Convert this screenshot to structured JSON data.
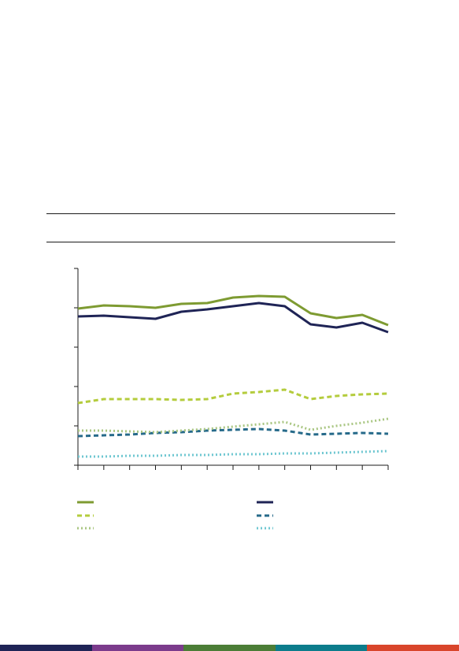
{
  "chart_data": {
    "type": "line",
    "title": "",
    "xlabel": "",
    "ylabel": "",
    "x": [
      1,
      2,
      3,
      4,
      5,
      6,
      7,
      8,
      9,
      10,
      11,
      12,
      13
    ],
    "ylim": [
      0,
      250
    ],
    "yticks": [
      0,
      50,
      100,
      150,
      200,
      250
    ],
    "grid": false,
    "legend_placement": "bottom",
    "series": [
      {
        "color": "#7e9b32",
        "style": "solid",
        "values": [
          199,
          203,
          202,
          200,
          205,
          206,
          213,
          215,
          214,
          193,
          187,
          191,
          178
        ]
      },
      {
        "color": "#1f2456",
        "style": "solid",
        "values": [
          189,
          190,
          188,
          186,
          195,
          198,
          202,
          206,
          202,
          179,
          175,
          181,
          169
        ]
      },
      {
        "color": "#b4cc3d",
        "style": "dashed",
        "values": [
          79,
          84,
          84,
          84,
          83,
          84,
          91,
          93,
          96,
          84,
          88,
          90,
          91
        ]
      },
      {
        "color": "#266a8a",
        "style": "dashed",
        "values": [
          37,
          38,
          39,
          41,
          42,
          44,
          45,
          46,
          44,
          39,
          40,
          41,
          40
        ]
      },
      {
        "color": "#a9c682",
        "style": "dotted",
        "values": [
          44,
          44,
          43,
          42,
          44,
          46,
          49,
          52,
          55,
          45,
          50,
          54,
          59
        ]
      },
      {
        "color": "#6fc7d1",
        "style": "dotted",
        "values": [
          11,
          11,
          12,
          12,
          13,
          13,
          14,
          14,
          15,
          15,
          16,
          17,
          18
        ]
      }
    ]
  },
  "footer": {
    "colors": [
      "#1f2456",
      "#7b3b8c",
      "#4b7d36",
      "#0c7c8c",
      "#d9452b"
    ]
  }
}
